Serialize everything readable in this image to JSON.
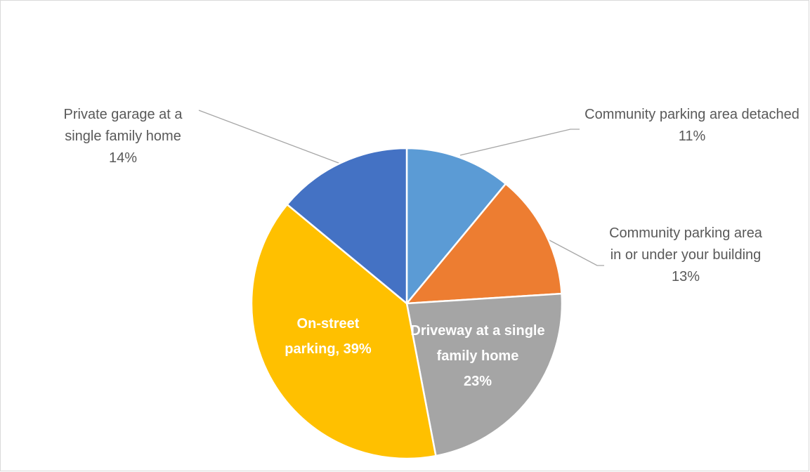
{
  "chart_data": {
    "type": "pie",
    "categories": [
      "Community parking area detached",
      "Community parking area in or under your building",
      "Driveway at a single family home",
      "On-street parking",
      "Private garage at a single family home"
    ],
    "values": [
      11,
      13,
      23,
      39,
      14
    ],
    "value_labels": [
      "11%",
      "13%",
      "23%",
      "On-street parking, 39%",
      "14%"
    ],
    "colors": [
      "#5b9bd5",
      "#ed7d31",
      "#a5a5a5",
      "#ffc000",
      "#4472c4"
    ]
  }
}
